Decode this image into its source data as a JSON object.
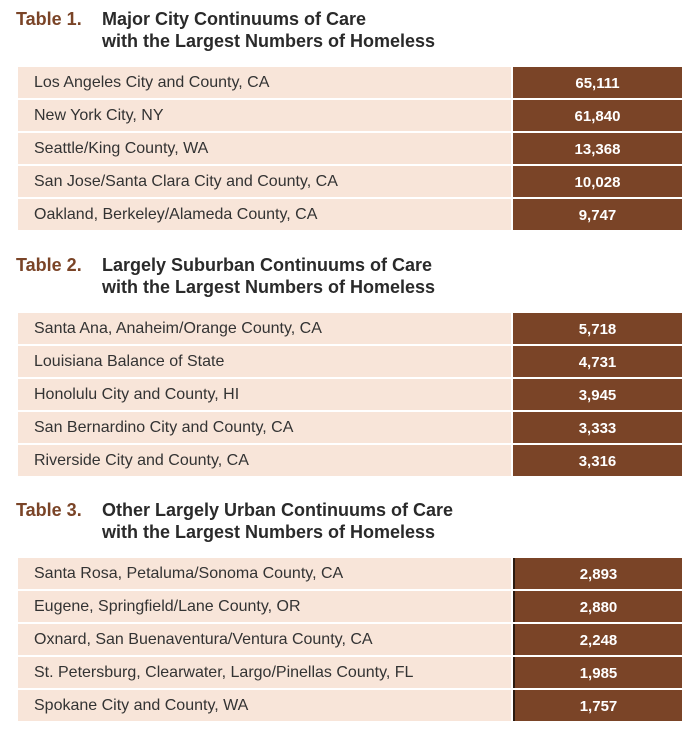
{
  "tables": [
    {
      "number": "Table 1.",
      "title_line1": "Major City Continuums of Care",
      "title_line2": "with the Largest Numbers of Homeless",
      "rows": [
        [
          "Los Angeles City and County, CA",
          "65,111"
        ],
        [
          "New York City, NY",
          "61,840"
        ],
        [
          "Seattle/King County, WA",
          "13,368"
        ],
        [
          "San Jose/Santa Clara City and County, CA",
          "10,028"
        ],
        [
          "Oakland, Berkeley/Alameda County, CA",
          "9,747"
        ]
      ]
    },
    {
      "number": "Table 2.",
      "title_line1": "Largely Suburban Continuums of Care",
      "title_line2": "with the Largest Numbers of Homeless",
      "rows": [
        [
          "Santa Ana, Anaheim/Orange County, CA",
          "5,718"
        ],
        [
          "Louisiana Balance of State",
          "4,731"
        ],
        [
          "Honolulu City and County, HI",
          "3,945"
        ],
        [
          "San Bernardino City and County, CA",
          "3,333"
        ],
        [
          "Riverside City and County, CA",
          "3,316"
        ]
      ]
    },
    {
      "number": "Table 3.",
      "title_line1": "Other Largely Urban Continuums of Care",
      "title_line2": "with the Largest Numbers of Homeless",
      "rows": [
        [
          "Santa Rosa, Petaluma/Sonoma County, CA",
          "2,893"
        ],
        [
          "Eugene, Springfield/Lane County, OR",
          "2,880"
        ],
        [
          "Oxnard, San Buenaventura/Ventura County, CA",
          "2,248"
        ],
        [
          "St. Petersburg, Clearwater, Largo/Pinellas County, FL",
          "1,985"
        ],
        [
          "Spokane City and County, WA",
          "1,757"
        ]
      ]
    }
  ],
  "colors": {
    "accent": "#7a4427",
    "row_bg": "#f8e5d9"
  }
}
